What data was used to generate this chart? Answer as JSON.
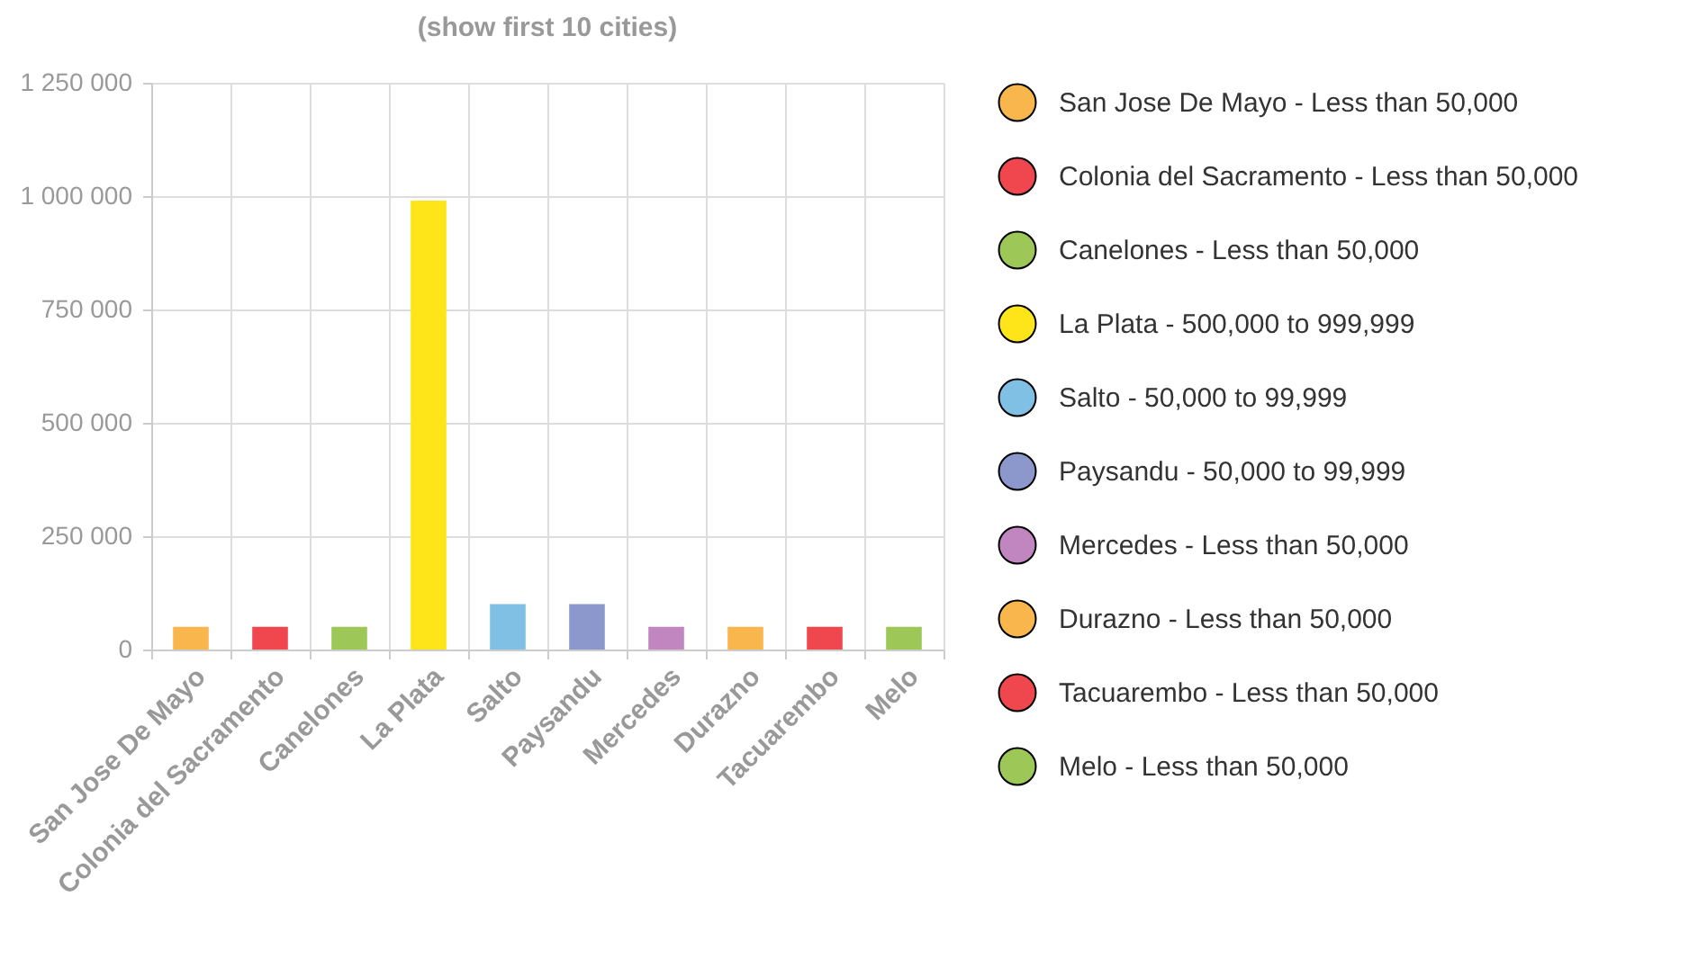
{
  "chart_data": {
    "type": "bar",
    "title": "(show first 10 cities)",
    "categories": [
      "San Jose De Mayo",
      "Colonia del Sacramento",
      "Canelones",
      "La Plata",
      "Salto",
      "Paysandu",
      "Mercedes",
      "Durazno",
      "Tacuarembo",
      "Melo"
    ],
    "series": [
      {
        "name": "San Jose De Mayo - Less than 50,000",
        "color": "#f9b64c",
        "values": [
          50000,
          null,
          null,
          null,
          null,
          null,
          null,
          null,
          null,
          null
        ]
      },
      {
        "name": "Colonia del Sacramento - Less than 50,000",
        "color": "#f0474e",
        "values": [
          null,
          50000,
          null,
          null,
          null,
          null,
          null,
          null,
          null,
          null
        ]
      },
      {
        "name": "Canelones - Less than 50,000",
        "color": "#9dc858",
        "values": [
          null,
          null,
          50000,
          null,
          null,
          null,
          null,
          null,
          null,
          null
        ]
      },
      {
        "name": "La Plata - 500,000 to 999,999",
        "color": "#fde51a",
        "values": [
          null,
          null,
          null,
          990000,
          null,
          null,
          null,
          null,
          null,
          null
        ]
      },
      {
        "name": "Salto - 50,000 to 99,999",
        "color": "#7fc0e4",
        "values": [
          null,
          null,
          null,
          null,
          100000,
          null,
          null,
          null,
          null,
          null
        ]
      },
      {
        "name": "Paysandu - 50,000 to 99,999",
        "color": "#8c98cc",
        "values": [
          null,
          null,
          null,
          null,
          null,
          100000,
          null,
          null,
          null,
          null
        ]
      },
      {
        "name": "Mercedes - Less than 50,000",
        "color": "#c185c0",
        "values": [
          null,
          null,
          null,
          null,
          null,
          null,
          50000,
          null,
          null,
          null
        ]
      },
      {
        "name": "Durazno - Less than 50,000",
        "color": "#f9b64c",
        "values": [
          null,
          null,
          null,
          null,
          null,
          null,
          null,
          50000,
          null,
          null
        ]
      },
      {
        "name": "Tacuarembo - Less than 50,000",
        "color": "#f0474e",
        "values": [
          null,
          null,
          null,
          null,
          null,
          null,
          null,
          null,
          50000,
          null
        ]
      },
      {
        "name": "Melo - Less than 50,000",
        "color": "#9dc858",
        "values": [
          null,
          null,
          null,
          null,
          null,
          null,
          null,
          null,
          null,
          50000
        ]
      }
    ],
    "ylim": [
      0,
      1250000
    ],
    "yticks": [
      0,
      {
        "value": 250000,
        "label": "250 000"
      },
      {
        "value": 500000,
        "label": "500 000"
      },
      {
        "value": 750000,
        "label": "750 000"
      },
      {
        "value": 1000000,
        "label": "1 000 000"
      },
      {
        "value": 1250000,
        "label": "1 250 000"
      }
    ],
    "grid": true,
    "legend": "right"
  }
}
